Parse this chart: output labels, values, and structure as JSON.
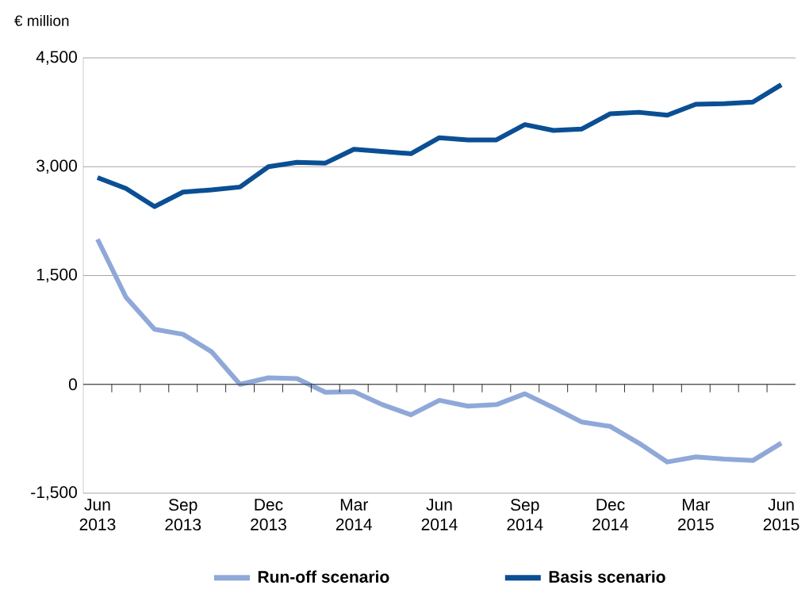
{
  "chart_data": {
    "type": "line",
    "ylabel": "€ million",
    "categories": [
      "Jun 2013",
      null,
      null,
      "Sep 2013",
      null,
      null,
      "Dec 2013",
      null,
      null,
      "Mar 2014",
      null,
      null,
      "Jun 2014",
      null,
      null,
      "Sep 2014",
      null,
      null,
      "Dec 2014",
      null,
      null,
      "Mar 2015",
      null,
      null,
      "Jun 2015"
    ],
    "series": [
      {
        "name": "Run-off scenario",
        "color": "#8fa8d8",
        "values": [
          2000,
          1200,
          760,
          690,
          450,
          0,
          90,
          80,
          -110,
          -100,
          -280,
          -420,
          -220,
          -300,
          -280,
          -130,
          -320,
          -520,
          -580,
          -810,
          -1070,
          -1000,
          -1030,
          -1050,
          -810
        ]
      },
      {
        "name": "Basis scenario",
        "color": "#0a4f93",
        "values": [
          2850,
          2700,
          2450,
          2650,
          2680,
          2720,
          3000,
          3060,
          3050,
          3240,
          3210,
          3180,
          3400,
          3370,
          3370,
          3580,
          3500,
          3520,
          3730,
          3750,
          3710,
          3860,
          3870,
          3890,
          4130
        ]
      }
    ],
    "ylim": [
      -1500,
      4500
    ],
    "yticks": [
      {
        "value": -1500,
        "label": "-1,500"
      },
      0,
      {
        "value": 1500,
        "label": "1,500"
      },
      {
        "value": 3000,
        "label": "3,000"
      },
      {
        "value": 4500,
        "label": "4,500"
      }
    ],
    "grid": "y",
    "legend": "bottom",
    "marker": "none",
    "line_style": "solid"
  }
}
